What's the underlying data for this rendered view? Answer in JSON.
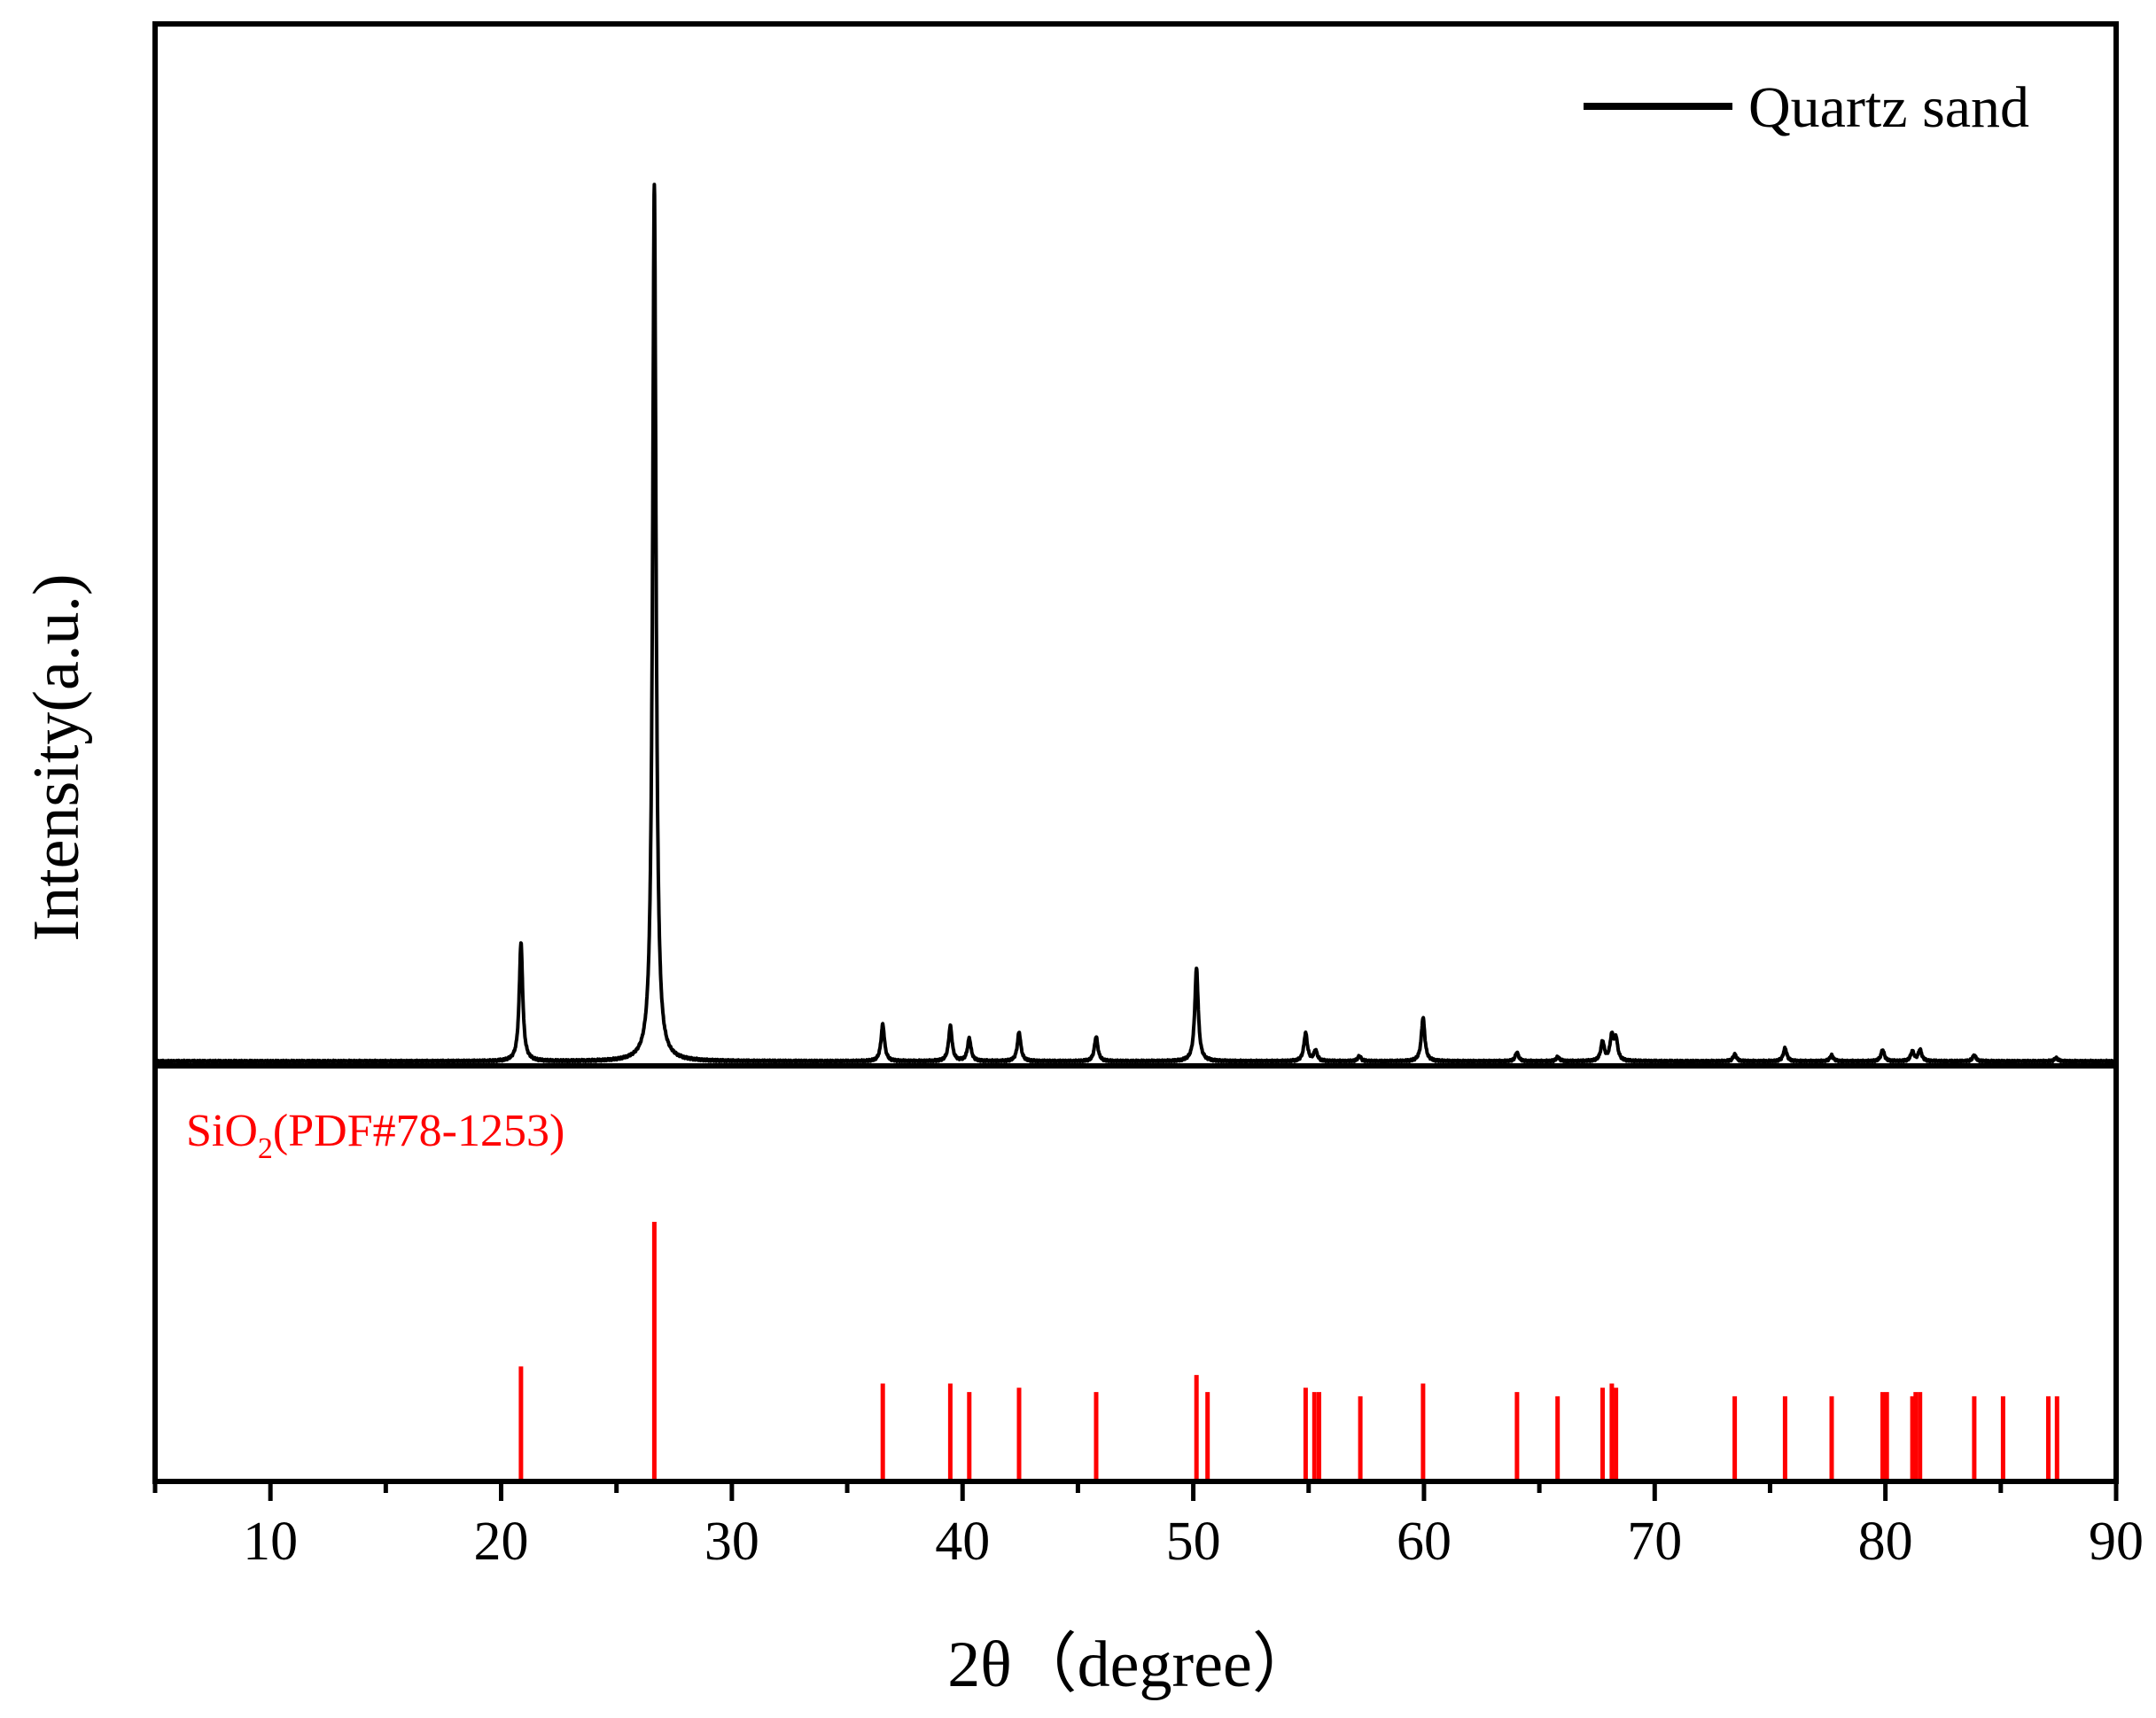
{
  "chart_data": {
    "type": "line",
    "xlabel": "2θ（degree）",
    "ylabel": "Intensity(a.u.)",
    "xlim": [
      5,
      90
    ],
    "x_ticks": [
      10,
      20,
      30,
      40,
      50,
      60,
      70,
      80,
      90
    ],
    "x_tick_labels": [
      "10",
      "20",
      "30",
      "40",
      "50",
      "60",
      "70",
      "80",
      "90"
    ],
    "y_ticks_shown": false,
    "legend": {
      "position": "top-right",
      "entries": [
        "Quartz sand"
      ]
    },
    "panels": [
      {
        "name": "pattern",
        "series": [
          {
            "name": "Quartz sand",
            "color": "#000000",
            "baseline": 0,
            "ylim": [
              0,
              100
            ],
            "peaks": [
              {
                "x": 20.86,
                "y": 13.5
              },
              {
                "x": 26.64,
                "y": 100
              },
              {
                "x": 36.54,
                "y": 4.2
              },
              {
                "x": 39.47,
                "y": 4.0
              },
              {
                "x": 40.29,
                "y": 2.6
              },
              {
                "x": 42.45,
                "y": 3.3
              },
              {
                "x": 45.79,
                "y": 2.8
              },
              {
                "x": 50.14,
                "y": 10.6
              },
              {
                "x": 54.87,
                "y": 3.2
              },
              {
                "x": 55.3,
                "y": 1.2
              },
              {
                "x": 57.2,
                "y": 0.6
              },
              {
                "x": 59.96,
                "y": 5.0
              },
              {
                "x": 64.03,
                "y": 1.0
              },
              {
                "x": 65.8,
                "y": 0.5
              },
              {
                "x": 67.74,
                "y": 2.2
              },
              {
                "x": 68.14,
                "y": 2.7
              },
              {
                "x": 68.32,
                "y": 2.4
              },
              {
                "x": 73.47,
                "y": 0.8
              },
              {
                "x": 75.65,
                "y": 1.5
              },
              {
                "x": 77.67,
                "y": 0.7
              },
              {
                "x": 79.88,
                "y": 1.3
              },
              {
                "x": 81.17,
                "y": 1.1
              },
              {
                "x": 81.5,
                "y": 1.3
              },
              {
                "x": 83.85,
                "y": 0.7
              },
              {
                "x": 87.4,
                "y": 0.4
              }
            ]
          }
        ]
      },
      {
        "name": "reference",
        "label_base": "SiO",
        "label_sub": "2",
        "label_rest": "(PDF#78-1253)",
        "color": "#ff0000",
        "ylim": [
          0,
          100
        ],
        "sticks": [
          {
            "x": 20.86,
            "y": 27
          },
          {
            "x": 26.64,
            "y": 61
          },
          {
            "x": 36.54,
            "y": 23
          },
          {
            "x": 39.47,
            "y": 23
          },
          {
            "x": 40.29,
            "y": 21
          },
          {
            "x": 42.45,
            "y": 22
          },
          {
            "x": 45.79,
            "y": 21
          },
          {
            "x": 50.14,
            "y": 25
          },
          {
            "x": 50.62,
            "y": 21
          },
          {
            "x": 54.87,
            "y": 22
          },
          {
            "x": 55.25,
            "y": 21
          },
          {
            "x": 55.45,
            "y": 21
          },
          {
            "x": 57.24,
            "y": 20
          },
          {
            "x": 59.96,
            "y": 23
          },
          {
            "x": 64.03,
            "y": 21
          },
          {
            "x": 65.79,
            "y": 20
          },
          {
            "x": 67.74,
            "y": 22
          },
          {
            "x": 68.14,
            "y": 23
          },
          {
            "x": 68.32,
            "y": 22
          },
          {
            "x": 73.47,
            "y": 20
          },
          {
            "x": 75.65,
            "y": 20
          },
          {
            "x": 77.67,
            "y": 20
          },
          {
            "x": 79.88,
            "y": 21
          },
          {
            "x": 80.06,
            "y": 21
          },
          {
            "x": 81.17,
            "y": 20
          },
          {
            "x": 81.31,
            "y": 21
          },
          {
            "x": 81.5,
            "y": 21
          },
          {
            "x": 83.85,
            "y": 20
          },
          {
            "x": 85.1,
            "y": 20
          },
          {
            "x": 87.06,
            "y": 20
          },
          {
            "x": 87.44,
            "y": 20
          }
        ]
      }
    ]
  }
}
